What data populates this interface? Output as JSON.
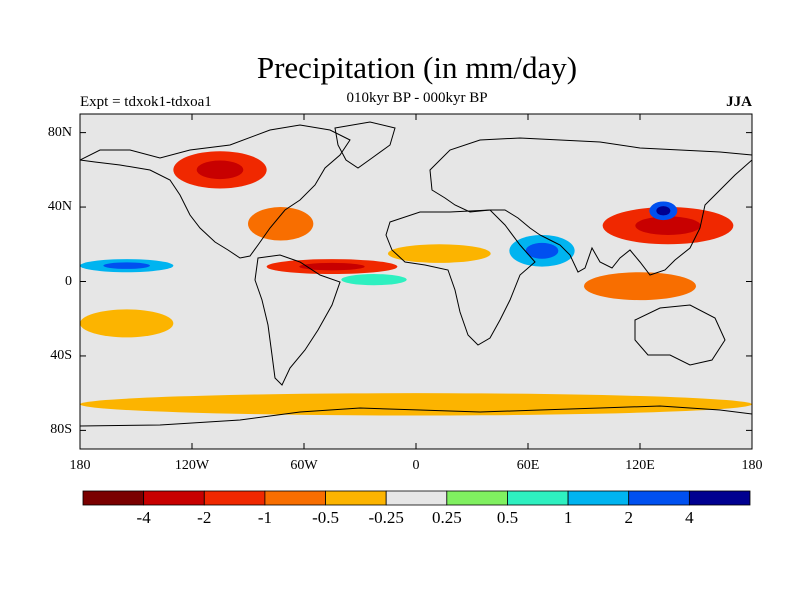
{
  "title": "Precipitation (in mm/day)",
  "subtitle": "010kyr BP - 000kyr BP",
  "expt_label": "Expt = tdxok1-tdxoa1",
  "season": "JJA",
  "chart_data": {
    "type": "heatmap",
    "projection": "cylindrical-equidistant",
    "variable": "Precipitation anomaly (mm/day)",
    "lat_ticks": [
      "80N",
      "40N",
      "0",
      "40S",
      "80S"
    ],
    "lon_ticks": [
      "180",
      "120W",
      "60W",
      "0",
      "60E",
      "120E",
      "180"
    ],
    "xlim": [
      -180,
      180
    ],
    "ylim": [
      -90,
      90
    ],
    "colorbar": {
      "labels": [
        "-4",
        "-2",
        "-1",
        "-0.5",
        "-0.25",
        "0.25",
        "0.5",
        "1",
        "2",
        "4"
      ],
      "colors": [
        "#7a0000",
        "#c80000",
        "#f02800",
        "#f86e00",
        "#fcb400",
        "#e6e6e6",
        "#80f060",
        "#2ef0c0",
        "#00b4f0",
        "#0050f0",
        "#000090"
      ]
    },
    "regions": [
      {
        "name": "North American drying",
        "lon": [
          -130,
          -80
        ],
        "lat": [
          50,
          70
        ],
        "class": -3
      },
      {
        "name": "Eastern US / Atlantic drying",
        "lon": [
          -90,
          -55
        ],
        "lat": [
          22,
          40
        ],
        "class": -2
      },
      {
        "name": "Atlantic ITCZ drying",
        "lon": [
          -80,
          -10
        ],
        "lat": [
          4,
          12
        ],
        "class": -3
      },
      {
        "name": "Sahel drying",
        "lon": [
          -15,
          40
        ],
        "lat": [
          10,
          20
        ],
        "class": -1
      },
      {
        "name": "Eastern Pacific wetting",
        "lon": [
          -180,
          -130
        ],
        "lat": [
          5,
          12
        ],
        "class": 3
      },
      {
        "name": "Equatorial Atlantic wetting",
        "lon": [
          -40,
          -5
        ],
        "lat": [
          -2,
          4
        ],
        "class": 2
      },
      {
        "name": "Arabian Sea / India wetting",
        "lon": [
          50,
          85
        ],
        "lat": [
          8,
          25
        ],
        "class": 3
      },
      {
        "name": "East Asia drying",
        "lon": [
          100,
          170
        ],
        "lat": [
          20,
          40
        ],
        "class": -3
      },
      {
        "name": "Japan wetting",
        "lon": [
          125,
          140
        ],
        "lat": [
          33,
          43
        ],
        "class": 4
      },
      {
        "name": "Maritime Continent drying",
        "lon": [
          90,
          150
        ],
        "lat": [
          -10,
          5
        ],
        "class": -2
      },
      {
        "name": "South Pacific drying",
        "lon": [
          -180,
          -130
        ],
        "lat": [
          -30,
          -15
        ],
        "class": -1
      },
      {
        "name": "Southern Ocean drying",
        "lon": [
          -180,
          180
        ],
        "lat": [
          -72,
          -60
        ],
        "class": -1
      }
    ]
  }
}
